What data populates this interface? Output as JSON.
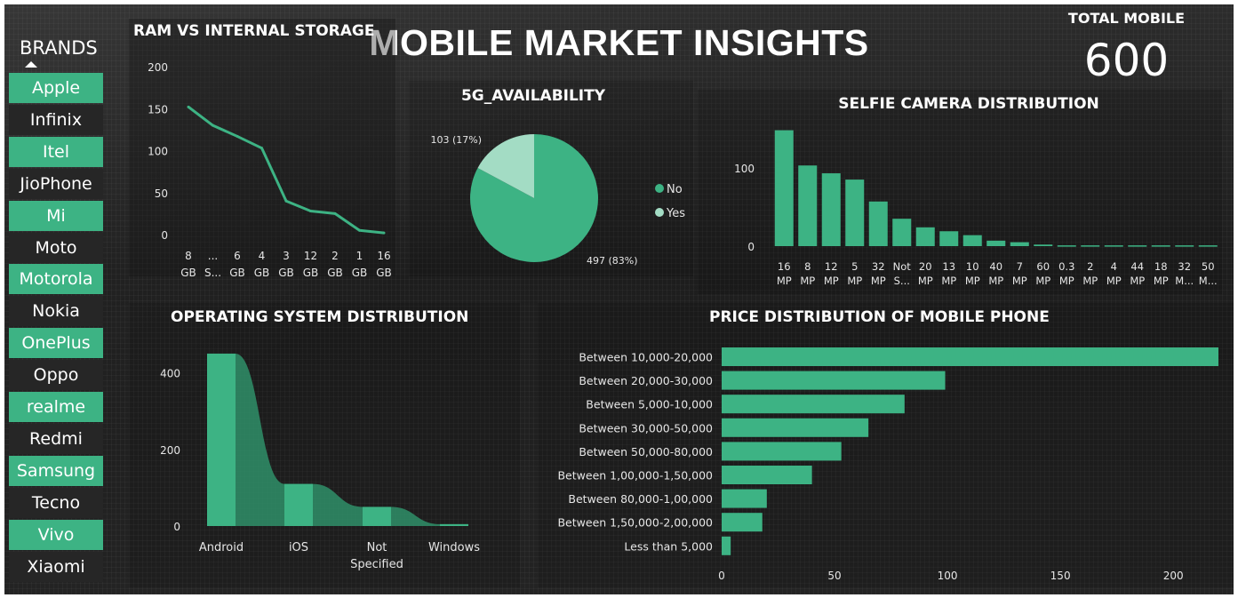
{
  "title": "MOBILE MARKET INSIGHTS",
  "total_mobile": {
    "label": "TOTAL MOBILE",
    "value": "600"
  },
  "brands_slicer": {
    "title": "BRANDS",
    "items": [
      {
        "label": "Apple",
        "selected": true
      },
      {
        "label": "Infinix",
        "selected": false
      },
      {
        "label": "Itel",
        "selected": true
      },
      {
        "label": "JioPhone",
        "selected": false
      },
      {
        "label": "Mi",
        "selected": true
      },
      {
        "label": "Moto",
        "selected": false
      },
      {
        "label": "Motorola",
        "selected": true
      },
      {
        "label": "Nokia",
        "selected": false
      },
      {
        "label": "OnePlus",
        "selected": true
      },
      {
        "label": "Oppo",
        "selected": false
      },
      {
        "label": "realme",
        "selected": true
      },
      {
        "label": "Redmi",
        "selected": false
      },
      {
        "label": "Samsung",
        "selected": true
      },
      {
        "label": "Tecno",
        "selected": false
      },
      {
        "label": "Vivo",
        "selected": true
      },
      {
        "label": "Xiaomi",
        "selected": false
      }
    ]
  },
  "colors": {
    "accent": "#3db384",
    "accent_light": "#a3dcc4",
    "accent_dark": "#2f8a65",
    "text": "#ffffff",
    "axis_text": "#e6e6e6"
  },
  "chart_data": [
    {
      "id": "ram",
      "type": "line",
      "title": "RAM VS INTERNAL STORAGE",
      "categories": [
        [
          "8",
          "GB"
        ],
        [
          "...",
          "S..."
        ],
        [
          "6",
          "GB"
        ],
        [
          "4",
          "GB"
        ],
        [
          "3",
          "GB"
        ],
        [
          "12",
          "GB"
        ],
        [
          "2",
          "GB"
        ],
        [
          "1",
          "GB"
        ],
        [
          "16",
          "GB"
        ]
      ],
      "values": [
        152,
        130,
        117,
        103,
        40,
        28,
        25,
        5,
        2
      ],
      "yticks": [
        0,
        50,
        100,
        150,
        200
      ],
      "ylim": [
        0,
        200
      ],
      "grid": false
    },
    {
      "id": "g5",
      "type": "pie",
      "title": "5G_AVAILABILITY",
      "slices": [
        {
          "label": "No",
          "value": 497,
          "percent": "83%",
          "data_label": "497 (83%)"
        },
        {
          "label": "Yes",
          "value": 103,
          "percent": "17%",
          "data_label": "103 (17%)"
        }
      ],
      "legend": [
        "No",
        "Yes"
      ],
      "legend_position": "right"
    },
    {
      "id": "selfie",
      "type": "bar",
      "title": "SELFIE CAMERA DISTRIBUTION",
      "categories": [
        [
          "16",
          "MP"
        ],
        [
          "8",
          "MP"
        ],
        [
          "12",
          "MP"
        ],
        [
          "5",
          "MP"
        ],
        [
          "32",
          "MP"
        ],
        [
          "Not",
          "S..."
        ],
        [
          "20",
          "MP"
        ],
        [
          "13",
          "MP"
        ],
        [
          "10",
          "MP"
        ],
        [
          "40",
          "MP"
        ],
        [
          "7",
          "MP"
        ],
        [
          "60",
          "MP"
        ],
        [
          "0.3",
          "MP"
        ],
        [
          "2",
          "MP"
        ],
        [
          "4",
          "MP"
        ],
        [
          "44",
          "MP"
        ],
        [
          "18",
          "MP"
        ],
        [
          "32",
          "M..."
        ],
        [
          "50",
          "M..."
        ]
      ],
      "values": [
        148,
        103,
        93,
        85,
        57,
        35,
        24,
        19,
        14,
        7,
        5,
        2,
        1,
        1,
        1,
        1,
        1,
        1,
        1
      ],
      "yticks": [
        0,
        100
      ],
      "ylim": [
        0,
        160
      ],
      "grid": false
    },
    {
      "id": "os",
      "type": "area",
      "title": "OPERATING SYSTEM DISTRIBUTION",
      "categories": [
        [
          "Android"
        ],
        [
          "iOS"
        ],
        [
          "Not",
          "Specified"
        ],
        [
          "Windows"
        ]
      ],
      "values": [
        450,
        110,
        50,
        5
      ],
      "yticks": [
        0,
        200,
        400
      ],
      "ylim": [
        0,
        480
      ],
      "grid": false
    },
    {
      "id": "price",
      "type": "bar",
      "orientation": "horizontal",
      "title": "PRICE DISTRIBUTION OF MOBILE PHONE",
      "categories": [
        "Between 10,000-20,000",
        "Between 20,000-30,000",
        "Between 5,000-10,000",
        "Between 30,000-50,000",
        "Between 50,000-80,000",
        "Between 1,00,000-1,50,000",
        "Between 80,000-1,00,000",
        "Between 1,50,000-2,00,000",
        "Less than 5,000"
      ],
      "values": [
        220,
        99,
        81,
        65,
        53,
        40,
        20,
        18,
        4
      ],
      "xticks": [
        0,
        50,
        100,
        150,
        200
      ],
      "xlim": [
        0,
        220
      ],
      "grid": false
    }
  ]
}
